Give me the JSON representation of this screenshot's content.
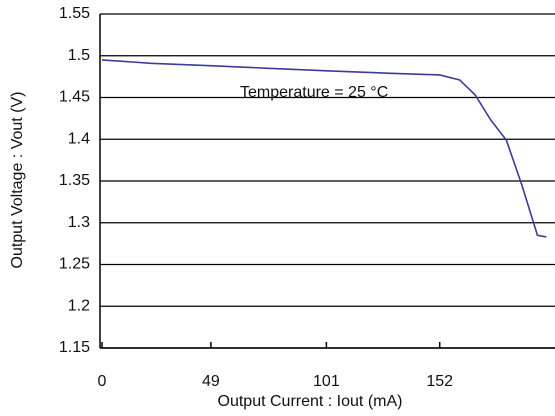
{
  "chart_data": {
    "type": "line",
    "x_label": "Output Current : Iout (mA)",
    "y_label": "Output Voltage : Vout (V)",
    "annotation": "Temperature = 25 °C",
    "xlim": [
      0,
      203
    ],
    "xticks": [
      0,
      49,
      101,
      152
    ],
    "ylim": [
      1.15,
      1.55
    ],
    "yticks": [
      1.15,
      1.2,
      1.25,
      1.3,
      1.35,
      1.4,
      1.45,
      1.5,
      1.55
    ],
    "grid": true,
    "series": [
      {
        "name": null,
        "color": "#3c3c9c",
        "x": [
          0,
          22,
          50,
          75,
          101,
          130,
          152,
          161,
          168,
          175,
          182,
          189,
          196,
          200
        ],
        "values": [
          1.495,
          1.491,
          1.488,
          1.485,
          1.482,
          1.479,
          1.477,
          1.471,
          1.453,
          1.423,
          1.399,
          1.345,
          1.285,
          1.283
        ]
      }
    ]
  }
}
